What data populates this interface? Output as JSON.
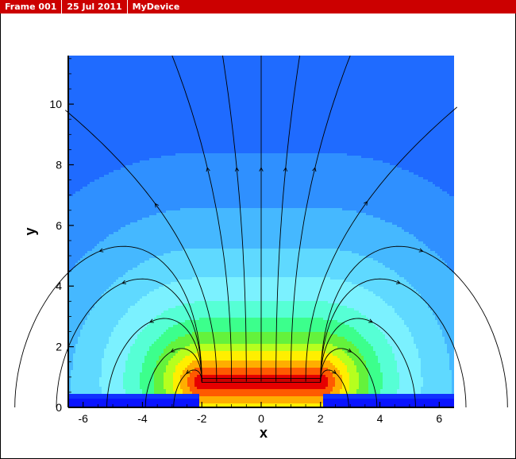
{
  "titlebar": {
    "frame": "Frame 001",
    "date": "25 Jul 2011",
    "device": "MyDevice"
  },
  "chart_data": {
    "type": "heatmap",
    "title": "",
    "xlabel": "x",
    "ylabel": "y",
    "xlim": [
      -6.5,
      6.5
    ],
    "ylim": [
      0,
      11.6
    ],
    "xticks": [
      -6,
      -4,
      -2,
      0,
      2,
      4,
      6
    ],
    "yticks": [
      0,
      2,
      4,
      6,
      8,
      10
    ],
    "colormap": [
      "#0a0aff",
      "#0050ff",
      "#0a9bff",
      "#1fd2ff",
      "#4affea",
      "#23ff7d",
      "#28e628",
      "#b4ff00",
      "#ffff00",
      "#ffaa00",
      "#ff5000",
      "#dc0000"
    ],
    "source_plate": {
      "x": [
        -2,
        2
      ],
      "y": 0.85
    },
    "contour_levels": 12,
    "streamlines": {
      "count": 14,
      "footpoints_x": [
        -2,
        -1.5,
        -1,
        -0.5,
        0,
        0.5,
        1,
        1.5,
        2
      ],
      "description_free": true
    },
    "grid": false
  }
}
